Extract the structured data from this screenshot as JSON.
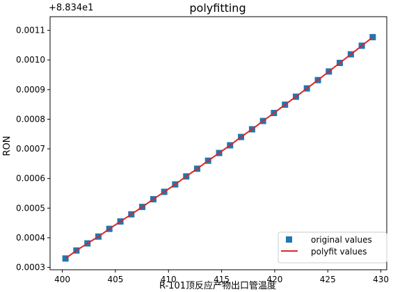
{
  "chart_data": {
    "type": "scatter",
    "title": "polyfitting",
    "offset_label": "+8.834e1",
    "xlabel": "R-101顶反应产物出口管温度",
    "ylabel": "RON",
    "xlim": [
      398.85,
      430.55
    ],
    "ylim": [
      0.000292,
      0.001146
    ],
    "xticks": [
      400,
      405,
      410,
      415,
      420,
      425,
      430
    ],
    "xtick_labels": [
      "400",
      "405",
      "410",
      "415",
      "420",
      "425",
      "430"
    ],
    "yticks": [
      0.0003,
      0.0004,
      0.0005,
      0.0006,
      0.0007,
      0.0008,
      0.0009,
      0.001,
      0.0011
    ],
    "ytick_labels": [
      "0.0003",
      "0.0004",
      "0.0005",
      "0.0006",
      "0.0007",
      "0.0008",
      "0.0009",
      "0.0010",
      "0.0011"
    ],
    "grid": false,
    "legend_position": "bottom-right",
    "series": [
      {
        "name": "original values",
        "kind": "marker",
        "color": "#1f77b4",
        "x": [
          400.3,
          401.33,
          402.37,
          403.4,
          404.43,
          405.47,
          406.5,
          407.53,
          408.57,
          409.6,
          410.63,
          411.67,
          412.7,
          413.73,
          414.77,
          415.8,
          416.83,
          417.87,
          418.9,
          419.93,
          420.97,
          422.0,
          423.03,
          424.07,
          425.1,
          426.13,
          427.17,
          428.2,
          429.23
        ],
        "y": [
          0.00033,
          0.000357,
          0.000381,
          0.000404,
          0.00043,
          0.000455,
          0.000479,
          0.000504,
          0.00053,
          0.000555,
          0.00058,
          0.000607,
          0.000633,
          0.00066,
          0.000686,
          0.000712,
          0.00074,
          0.000766,
          0.000794,
          0.000821,
          0.000849,
          0.000876,
          0.000904,
          0.000932,
          0.000961,
          0.00099,
          0.001019,
          0.001048,
          0.001077
        ]
      },
      {
        "name": "polyfit values",
        "kind": "line",
        "color": "#d62728",
        "x": [
          400.3,
          401.33,
          402.37,
          403.4,
          404.43,
          405.47,
          406.5,
          407.53,
          408.57,
          409.6,
          410.63,
          411.67,
          412.7,
          413.73,
          414.77,
          415.8,
          416.83,
          417.87,
          418.9,
          419.93,
          420.97,
          422.0,
          423.03,
          424.07,
          425.1,
          426.13,
          427.17,
          428.2,
          429.23
        ],
        "y": [
          0.00033,
          0.000357,
          0.000381,
          0.000404,
          0.00043,
          0.000455,
          0.000479,
          0.000504,
          0.00053,
          0.000555,
          0.00058,
          0.000607,
          0.000633,
          0.00066,
          0.000686,
          0.000712,
          0.00074,
          0.000766,
          0.000794,
          0.000821,
          0.000849,
          0.000876,
          0.000904,
          0.000932,
          0.000961,
          0.00099,
          0.001019,
          0.001048,
          0.001077
        ]
      }
    ]
  }
}
